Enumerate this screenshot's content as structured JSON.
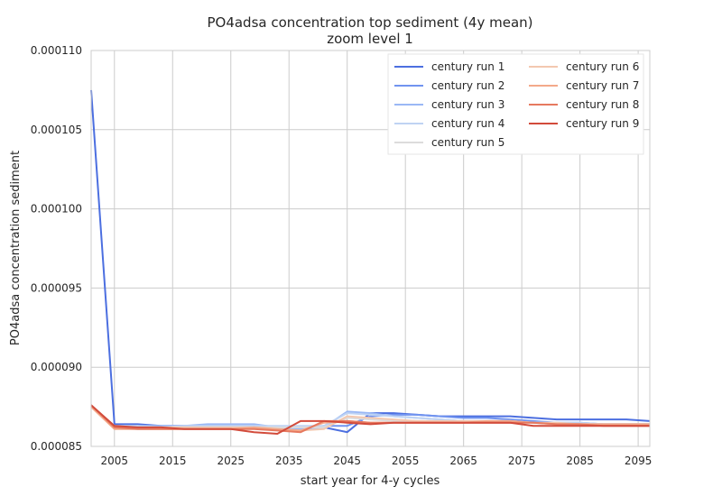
{
  "chart_data": {
    "type": "line",
    "title": "PO4adsa concentration top sediment (4y mean)",
    "subtitle": "zoom level 1",
    "xlabel": "start year for 4-y cycles",
    "ylabel": "PO4adsa concentration sediment",
    "xlim": [
      2001,
      2097
    ],
    "ylim": [
      8.5e-05,
      0.00011
    ],
    "xticks": [
      2005,
      2015,
      2025,
      2035,
      2045,
      2055,
      2065,
      2075,
      2085,
      2095
    ],
    "xtick_labels": [
      "2005",
      "2015",
      "2025",
      "2035",
      "2045",
      "2055",
      "2065",
      "2075",
      "2085",
      "2095"
    ],
    "yticks": [
      8.5e-05,
      9e-05,
      9.5e-05,
      0.0001,
      0.000105,
      0.00011
    ],
    "ytick_labels": [
      "0.000085",
      "0.000090",
      "0.000095",
      "0.000100",
      "0.000105",
      "0.000110"
    ],
    "grid": true,
    "legend_position": "top-right",
    "x": [
      2001,
      2005,
      2009,
      2013,
      2017,
      2021,
      2025,
      2029,
      2033,
      2037,
      2041,
      2045,
      2049,
      2053,
      2057,
      2061,
      2065,
      2069,
      2073,
      2077,
      2081,
      2085,
      2089,
      2093,
      2097
    ],
    "series": [
      {
        "name": "century run 1",
        "color": "#4c6fe0",
        "values": [
          0.0001075,
          8.64e-05,
          8.64e-05,
          8.63e-05,
          8.63e-05,
          8.63e-05,
          8.63e-05,
          8.63e-05,
          8.62e-05,
          8.61e-05,
          8.62e-05,
          8.59e-05,
          8.71e-05,
          8.71e-05,
          8.7e-05,
          8.69e-05,
          8.69e-05,
          8.69e-05,
          8.69e-05,
          8.68e-05,
          8.67e-05,
          8.67e-05,
          8.67e-05,
          8.67e-05,
          8.66e-05
        ]
      },
      {
        "name": "century run 2",
        "color": "#7194f0",
        "values": [
          8.76e-05,
          8.62e-05,
          8.62e-05,
          8.62e-05,
          8.62e-05,
          8.62e-05,
          8.62e-05,
          8.62e-05,
          8.61e-05,
          8.6e-05,
          8.63e-05,
          8.63e-05,
          8.69e-05,
          8.7e-05,
          8.7e-05,
          8.69e-05,
          8.68e-05,
          8.68e-05,
          8.67e-05,
          8.66e-05,
          8.65e-05,
          8.65e-05,
          8.64e-05,
          8.64e-05,
          8.64e-05
        ]
      },
      {
        "name": "century run 3",
        "color": "#9ab8f5",
        "values": [
          8.75e-05,
          8.62e-05,
          8.63e-05,
          8.63e-05,
          8.63e-05,
          8.64e-05,
          8.64e-05,
          8.64e-05,
          8.62e-05,
          8.61e-05,
          8.62e-05,
          8.72e-05,
          8.71e-05,
          8.69e-05,
          8.68e-05,
          8.67e-05,
          8.66e-05,
          8.66e-05,
          8.66e-05,
          8.65e-05,
          8.65e-05,
          8.64e-05,
          8.64e-05,
          8.64e-05,
          8.64e-05
        ]
      },
      {
        "name": "century run 4",
        "color": "#bfd3f3",
        "values": [
          8.75e-05,
          8.63e-05,
          8.63e-05,
          8.62e-05,
          8.63e-05,
          8.63e-05,
          8.63e-05,
          8.63e-05,
          8.63e-05,
          8.63e-05,
          8.63e-05,
          8.71e-05,
          8.7e-05,
          8.69e-05,
          8.68e-05,
          8.67e-05,
          8.66e-05,
          8.66e-05,
          8.66e-05,
          8.65e-05,
          8.65e-05,
          8.65e-05,
          8.64e-05,
          8.64e-05,
          8.64e-05
        ]
      },
      {
        "name": "century run 5",
        "color": "#dddcdc",
        "values": [
          8.75e-05,
          8.62e-05,
          8.62e-05,
          8.62e-05,
          8.62e-05,
          8.62e-05,
          8.62e-05,
          8.62e-05,
          8.62e-05,
          8.62e-05,
          8.62e-05,
          8.68e-05,
          8.67e-05,
          8.66e-05,
          8.66e-05,
          8.66e-05,
          8.65e-05,
          8.65e-05,
          8.65e-05,
          8.65e-05,
          8.64e-05,
          8.64e-05,
          8.64e-05,
          8.64e-05,
          8.64e-05
        ]
      },
      {
        "name": "century run 6",
        "color": "#f3c8b0",
        "values": [
          8.75e-05,
          8.61e-05,
          8.62e-05,
          8.62e-05,
          8.62e-05,
          8.62e-05,
          8.62e-05,
          8.62e-05,
          8.61e-05,
          8.6e-05,
          8.61e-05,
          8.69e-05,
          8.68e-05,
          8.67e-05,
          8.66e-05,
          8.66e-05,
          8.66e-05,
          8.66e-05,
          8.66e-05,
          8.65e-05,
          8.65e-05,
          8.64e-05,
          8.64e-05,
          8.64e-05,
          8.64e-05
        ]
      },
      {
        "name": "century run 7",
        "color": "#f3a98a",
        "values": [
          8.75e-05,
          8.61e-05,
          8.61e-05,
          8.61e-05,
          8.61e-05,
          8.61e-05,
          8.61e-05,
          8.62e-05,
          8.61e-05,
          8.6e-05,
          8.65e-05,
          8.66e-05,
          8.65e-05,
          8.65e-05,
          8.65e-05,
          8.65e-05,
          8.65e-05,
          8.66e-05,
          8.66e-05,
          8.65e-05,
          8.64e-05,
          8.64e-05,
          8.64e-05,
          8.64e-05,
          8.64e-05
        ]
      },
      {
        "name": "century run 8",
        "color": "#e6795f",
        "values": [
          8.76e-05,
          8.62e-05,
          8.61e-05,
          8.61e-05,
          8.61e-05,
          8.61e-05,
          8.61e-05,
          8.61e-05,
          8.6e-05,
          8.59e-05,
          8.66e-05,
          8.66e-05,
          8.65e-05,
          8.65e-05,
          8.65e-05,
          8.65e-05,
          8.65e-05,
          8.65e-05,
          8.65e-05,
          8.65e-05,
          8.64e-05,
          8.64e-05,
          8.63e-05,
          8.63e-05,
          8.63e-05
        ]
      },
      {
        "name": "century run 9",
        "color": "#d24b3b",
        "values": [
          8.76e-05,
          8.63e-05,
          8.62e-05,
          8.62e-05,
          8.61e-05,
          8.61e-05,
          8.61e-05,
          8.59e-05,
          8.58e-05,
          8.66e-05,
          8.66e-05,
          8.65e-05,
          8.64e-05,
          8.65e-05,
          8.65e-05,
          8.65e-05,
          8.65e-05,
          8.65e-05,
          8.65e-05,
          8.63e-05,
          8.63e-05,
          8.63e-05,
          8.63e-05,
          8.63e-05,
          8.63e-05
        ]
      }
    ]
  }
}
